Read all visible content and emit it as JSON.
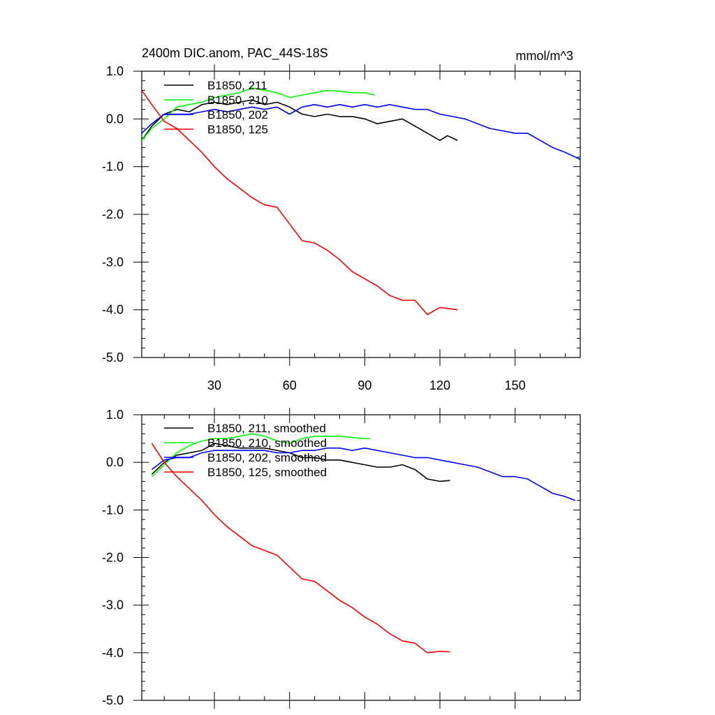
{
  "chart_data": [
    {
      "type": "line",
      "title": "2400m DIC.anom, PAC_44S-18S",
      "units": "mmol/m^3",
      "xlim": [
        1,
        176
      ],
      "ylim": [
        -5,
        1
      ],
      "xticks": [
        30,
        60,
        90,
        120,
        150
      ],
      "xtick_labels": [
        "30",
        "60",
        "90",
        "120",
        "150"
      ],
      "yticks": [
        -5,
        -4,
        -3,
        -2,
        -1,
        0,
        1
      ],
      "ytick_labels": [
        "-5.0",
        "-4.0",
        "-3.0",
        "-2.0",
        "-1.0",
        "0.0",
        "1.0"
      ],
      "legend": "top-left",
      "series": [
        {
          "name": "B1850, 211",
          "color": "#000000",
          "x": [
            1,
            5,
            10,
            15,
            20,
            25,
            30,
            35,
            40,
            45,
            50,
            55,
            60,
            65,
            70,
            75,
            80,
            85,
            90,
            95,
            100,
            105,
            110,
            115,
            120,
            123,
            127
          ],
          "y": [
            -0.45,
            -0.15,
            0.1,
            0.2,
            0.15,
            0.3,
            0.35,
            0.3,
            0.35,
            0.4,
            0.3,
            0.35,
            0.25,
            0.1,
            0.05,
            0.1,
            0.05,
            0.05,
            0.0,
            -0.1,
            -0.05,
            0.0,
            -0.15,
            -0.3,
            -0.45,
            -0.35,
            -0.45
          ]
        },
        {
          "name": "B1850, 210",
          "color": "#00ff00",
          "x": [
            1,
            5,
            10,
            15,
            20,
            25,
            30,
            35,
            40,
            45,
            50,
            55,
            60,
            65,
            70,
            75,
            80,
            85,
            90,
            94
          ],
          "y": [
            -0.45,
            -0.2,
            0.0,
            0.25,
            0.3,
            0.35,
            0.45,
            0.5,
            0.55,
            0.65,
            0.6,
            0.55,
            0.45,
            0.5,
            0.55,
            0.6,
            0.58,
            0.55,
            0.55,
            0.5
          ]
        },
        {
          "name": "B1850, 202",
          "color": "#0000ff",
          "x": [
            1,
            5,
            10,
            15,
            20,
            25,
            30,
            35,
            40,
            45,
            50,
            55,
            60,
            65,
            70,
            75,
            80,
            85,
            90,
            95,
            100,
            105,
            110,
            115,
            120,
            125,
            130,
            135,
            140,
            145,
            150,
            155,
            160,
            165,
            170,
            176
          ],
          "y": [
            -0.3,
            -0.1,
            0.1,
            0.1,
            0.1,
            0.15,
            0.2,
            0.15,
            0.2,
            0.25,
            0.2,
            0.25,
            0.1,
            0.25,
            0.3,
            0.25,
            0.3,
            0.25,
            0.3,
            0.25,
            0.3,
            0.25,
            0.2,
            0.2,
            0.1,
            0.05,
            0.0,
            -0.1,
            -0.2,
            -0.25,
            -0.3,
            -0.3,
            -0.45,
            -0.6,
            -0.7,
            -0.85
          ]
        },
        {
          "name": "B1850, 125",
          "color": "#ff0000",
          "x": [
            1,
            5,
            10,
            15,
            20,
            25,
            30,
            35,
            40,
            45,
            50,
            55,
            60,
            65,
            70,
            75,
            80,
            85,
            90,
            95,
            100,
            105,
            110,
            115,
            120,
            127
          ],
          "y": [
            0.6,
            0.3,
            -0.05,
            -0.2,
            -0.45,
            -0.7,
            -1.0,
            -1.25,
            -1.45,
            -1.65,
            -1.8,
            -1.85,
            -2.2,
            -2.55,
            -2.6,
            -2.75,
            -2.95,
            -3.2,
            -3.35,
            -3.5,
            -3.7,
            -3.8,
            -3.8,
            -4.1,
            -3.95,
            -4.0
          ]
        }
      ]
    },
    {
      "type": "line",
      "xlim": [
        1,
        176
      ],
      "ylim": [
        -5,
        1
      ],
      "xticks": [
        30,
        60,
        90,
        120,
        150
      ],
      "yticks": [
        -5,
        -4,
        -3,
        -2,
        -1,
        0,
        1
      ],
      "ytick_labels": [
        "-5.0",
        "-4.0",
        "-3.0",
        "-2.0",
        "-1.0",
        "0.0",
        "1.0"
      ],
      "legend": "top-left",
      "series": [
        {
          "name": "B1850, 211, smoothed",
          "color": "#000000",
          "x": [
            5,
            10,
            15,
            20,
            25,
            30,
            35,
            40,
            45,
            50,
            55,
            60,
            65,
            70,
            75,
            80,
            85,
            90,
            95,
            100,
            105,
            110,
            115,
            120,
            124
          ],
          "y": [
            -0.25,
            0.0,
            0.15,
            0.2,
            0.25,
            0.4,
            0.35,
            0.3,
            0.3,
            0.3,
            0.25,
            0.2,
            0.1,
            0.1,
            0.05,
            0.05,
            0.0,
            -0.05,
            -0.1,
            -0.1,
            -0.05,
            -0.15,
            -0.35,
            -0.4,
            -0.38
          ]
        },
        {
          "name": "B1850, 210, smoothed",
          "color": "#00ff00",
          "x": [
            5,
            10,
            15,
            20,
            25,
            30,
            35,
            40,
            45,
            50,
            55,
            60,
            65,
            70,
            75,
            80,
            85,
            90,
            92
          ],
          "y": [
            -0.3,
            -0.05,
            0.2,
            0.35,
            0.45,
            0.5,
            0.5,
            0.55,
            0.6,
            0.55,
            0.45,
            0.4,
            0.5,
            0.55,
            0.55,
            0.55,
            0.52,
            0.5,
            0.5
          ]
        },
        {
          "name": "B1850, 202, smoothed",
          "color": "#0000ff",
          "x": [
            5,
            10,
            15,
            20,
            25,
            30,
            35,
            40,
            45,
            50,
            55,
            60,
            65,
            70,
            75,
            80,
            85,
            90,
            95,
            100,
            105,
            110,
            115,
            120,
            125,
            130,
            135,
            140,
            145,
            150,
            155,
            160,
            165,
            170,
            174
          ],
          "y": [
            -0.15,
            0.05,
            0.1,
            0.1,
            0.2,
            0.25,
            0.25,
            0.25,
            0.25,
            0.25,
            0.2,
            0.2,
            0.25,
            0.25,
            0.3,
            0.3,
            0.25,
            0.3,
            0.25,
            0.2,
            0.15,
            0.1,
            0.1,
            0.05,
            0.0,
            -0.05,
            -0.1,
            -0.2,
            -0.3,
            -0.3,
            -0.35,
            -0.5,
            -0.65,
            -0.72,
            -0.8
          ]
        },
        {
          "name": "B1850, 125, smoothed",
          "color": "#ff0000",
          "x": [
            5,
            10,
            15,
            20,
            25,
            30,
            35,
            40,
            45,
            50,
            55,
            60,
            65,
            70,
            75,
            80,
            85,
            90,
            95,
            100,
            105,
            110,
            115,
            120,
            124
          ],
          "y": [
            0.4,
            0.0,
            -0.3,
            -0.55,
            -0.8,
            -1.1,
            -1.35,
            -1.55,
            -1.75,
            -1.85,
            -1.95,
            -2.2,
            -2.45,
            -2.5,
            -2.7,
            -2.9,
            -3.05,
            -3.25,
            -3.4,
            -3.6,
            -3.75,
            -3.8,
            -4.0,
            -3.97,
            -3.98
          ]
        }
      ]
    }
  ]
}
